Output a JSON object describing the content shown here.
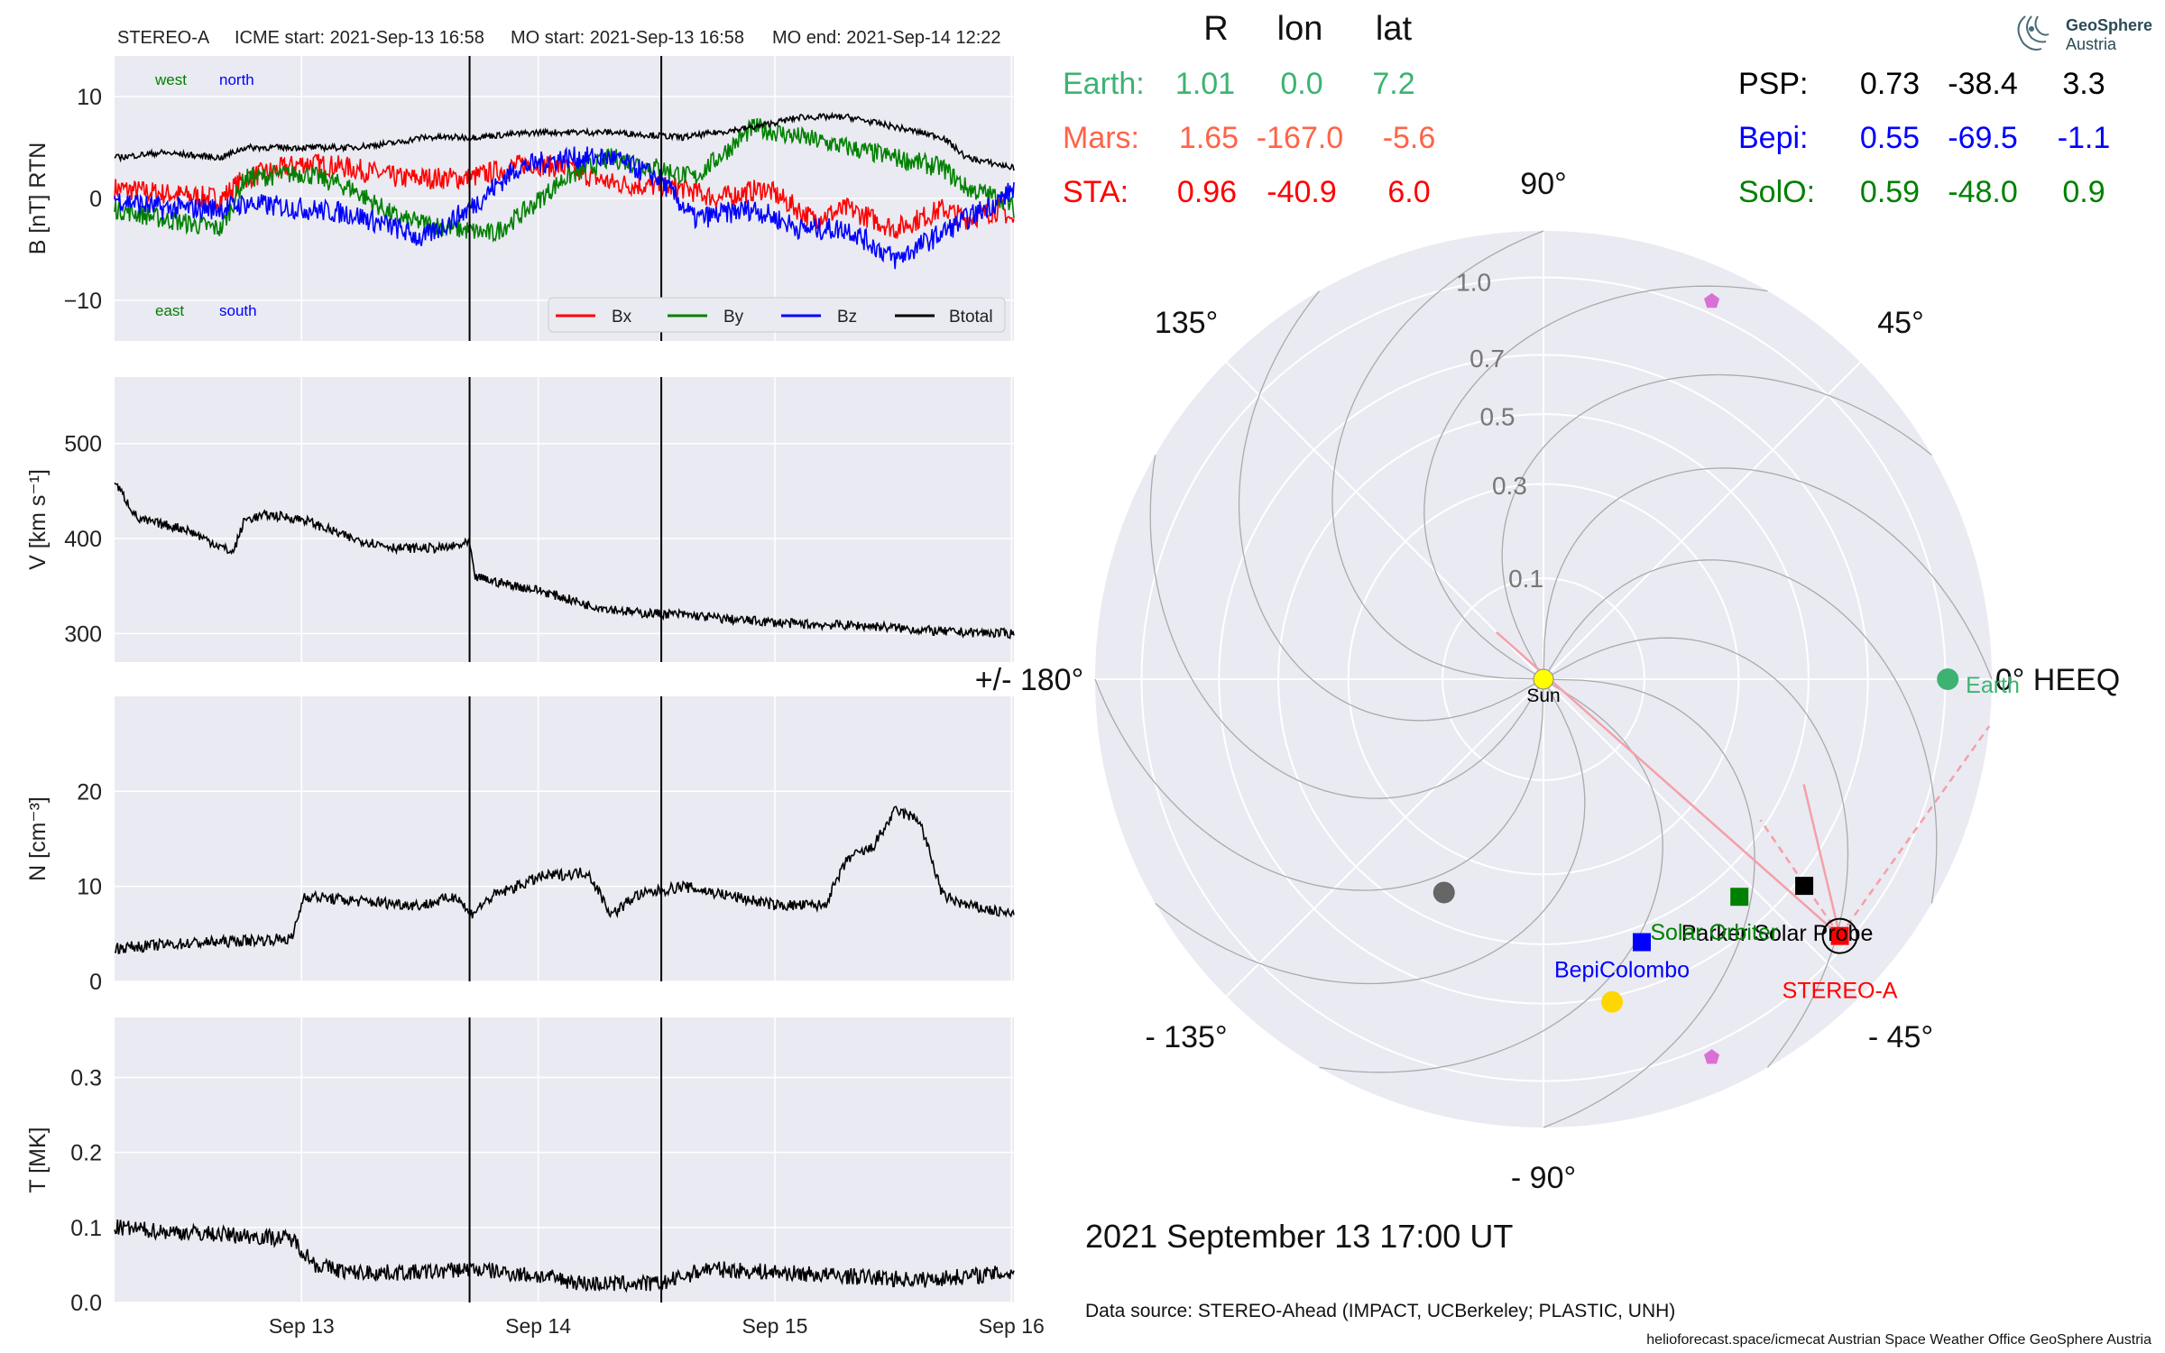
{
  "header": {
    "spacecraft": "STEREO-A",
    "icme_start": "ICME start: 2021-Sep-13 16:58",
    "mo_start": "MO start: 2021-Sep-13 16:58",
    "mo_end": "MO end: 2021-Sep-14 12:22"
  },
  "colors": {
    "panel_bg": "#eaeaf2",
    "bx": "#ff0000",
    "by": "#008000",
    "bz": "#0000ff",
    "btotal": "#000000",
    "earth": "#3cb371",
    "mars": "#ff6347",
    "sta": "#ff0000",
    "psp": "#000000",
    "bepi": "#0000ff",
    "solo": "#008000",
    "sun": "#ffff00",
    "pentagon": "#da70d6",
    "fieldline": "#f4a0a8"
  },
  "chart_data": [
    {
      "type": "line",
      "panel": "magnetic-field",
      "ylabel": "B [nT] RTN",
      "ylim": [
        -14,
        14
      ],
      "yticks": [
        10,
        0,
        -10
      ],
      "ytick_labels": [
        "10",
        "0",
        "−10"
      ],
      "annotations": {
        "west": "west",
        "north": "north",
        "east": "east",
        "south": "south"
      },
      "legend": [
        "Bx",
        "By",
        "Bz",
        "Btotal"
      ],
      "legend_position": "lower-right",
      "x_range_days": [
        0,
        3.8
      ],
      "series": [
        {
          "name": "Bx",
          "x": [
            0,
            0.2,
            0.45,
            0.55,
            0.8,
            1.0,
            1.2,
            1.5,
            1.75,
            1.9,
            2.1,
            2.4,
            2.55,
            2.75,
            2.95,
            3.1,
            3.3,
            3.5,
            3.6,
            3.75,
            3.8
          ],
          "y": [
            1,
            0.5,
            0,
            2,
            3.5,
            3,
            2,
            2,
            3.5,
            3,
            1.5,
            1,
            0,
            1,
            -2,
            -1,
            -3,
            -1,
            -2,
            -1,
            -2.5
          ]
        },
        {
          "name": "By",
          "x": [
            0,
            0.2,
            0.45,
            0.55,
            0.8,
            1.0,
            1.2,
            1.45,
            1.6,
            1.75,
            1.9,
            2.1,
            2.3,
            2.45,
            2.7,
            2.9,
            3.1,
            3.3,
            3.5,
            3.6,
            3.75,
            3.8
          ],
          "y": [
            -1,
            -2,
            -3,
            2,
            2.5,
            1,
            -2,
            -3,
            -3.5,
            -1,
            2,
            4,
            3,
            2,
            7,
            6,
            5,
            4,
            3,
            1,
            0,
            -1
          ]
        },
        {
          "name": "Bz",
          "x": [
            0,
            0.2,
            0.45,
            0.55,
            0.8,
            1.0,
            1.2,
            1.3,
            1.5,
            1.7,
            1.9,
            2.1,
            2.3,
            2.45,
            2.7,
            2.9,
            3.1,
            3.3,
            3.45,
            3.6,
            3.75,
            3.8
          ],
          "y": [
            0,
            -1,
            -1,
            -0.5,
            -1,
            -1.5,
            -3,
            -4,
            -1,
            3,
            4,
            4,
            2,
            -2,
            -1,
            -3,
            -3,
            -6,
            -4,
            -2,
            0,
            1
          ]
        },
        {
          "name": "Btotal",
          "x": [
            0,
            0.2,
            0.45,
            0.55,
            0.8,
            1.0,
            1.2,
            1.3,
            1.5,
            1.8,
            2.1,
            2.4,
            2.7,
            2.9,
            3.1,
            3.3,
            3.5,
            3.6,
            3.8
          ],
          "y": [
            4,
            4.5,
            4,
            5,
            5,
            5,
            5.5,
            6,
            6,
            6.5,
            6.5,
            6,
            7,
            8,
            8,
            7,
            6,
            4,
            3
          ]
        }
      ]
    },
    {
      "type": "line",
      "panel": "velocity",
      "ylabel": "V [km s⁻¹]",
      "ylim": [
        270,
        570
      ],
      "yticks": [
        500,
        400,
        300
      ],
      "ytick_labels": [
        "500",
        "400",
        "300"
      ],
      "series": [
        {
          "name": "V",
          "x": [
            0,
            0.1,
            0.3,
            0.5,
            0.55,
            0.65,
            0.8,
            1.0,
            1.2,
            1.4,
            1.5,
            1.52,
            1.6,
            1.8,
            2.0,
            2.2,
            2.4,
            2.6,
            2.9,
            3.2,
            3.5,
            3.8
          ],
          "y": [
            460,
            420,
            410,
            385,
            420,
            425,
            420,
            400,
            390,
            390,
            395,
            360,
            355,
            345,
            330,
            322,
            320,
            315,
            310,
            308,
            302,
            300
          ]
        }
      ]
    },
    {
      "type": "line",
      "panel": "density",
      "ylabel": "N [cm⁻³]",
      "ylim": [
        0,
        30
      ],
      "yticks": [
        20,
        10,
        0
      ],
      "ytick_labels": [
        "20",
        "10",
        "0"
      ],
      "series": [
        {
          "name": "N",
          "x": [
            0,
            0.3,
            0.75,
            0.8,
            1.0,
            1.3,
            1.45,
            1.5,
            1.6,
            1.8,
            2.0,
            2.1,
            2.2,
            2.4,
            2.6,
            2.8,
            3.0,
            3.1,
            3.2,
            3.3,
            3.4,
            3.5,
            3.6,
            3.8
          ],
          "y": [
            3.5,
            4,
            4.5,
            9,
            8.5,
            8,
            9,
            7,
            9,
            11,
            11.5,
            7,
            9,
            10,
            9,
            8,
            8,
            13,
            14,
            18,
            17,
            9,
            8,
            7
          ]
        }
      ]
    },
    {
      "type": "line",
      "panel": "temperature",
      "ylabel": "T [MK]",
      "ylim": [
        0,
        0.38
      ],
      "yticks": [
        0.3,
        0.2,
        0.1,
        0.0
      ],
      "ytick_labels": [
        "0.3",
        "0.2",
        "0.1",
        "0.0"
      ],
      "xticks": [
        0.79,
        1.79,
        2.79,
        3.79
      ],
      "xtick_labels": [
        "Sep 13",
        "Sep 14",
        "Sep 15",
        "Sep 16"
      ],
      "vlines": [
        1.5,
        2.31
      ],
      "series": [
        {
          "name": "T",
          "x": [
            0,
            0.2,
            0.5,
            0.75,
            0.85,
            1.0,
            1.3,
            1.5,
            1.8,
            2.0,
            2.31,
            2.5,
            2.8,
            3.1,
            3.4,
            3.6,
            3.8
          ],
          "y": [
            0.1,
            0.095,
            0.09,
            0.085,
            0.05,
            0.04,
            0.04,
            0.045,
            0.035,
            0.025,
            0.025,
            0.045,
            0.04,
            0.035,
            0.03,
            0.035,
            0.04
          ]
        }
      ]
    },
    {
      "type": "scatter",
      "panel": "polar-orbit-plot",
      "coordinate_system": "HEEQ",
      "angle_labels": {
        "a0": "0° HEEQ",
        "a45": "45°",
        "a90": "90°",
        "a135": "135°",
        "a180": "+/- 180°",
        "am135": "- 135°",
        "am90": "- 90°",
        "am45": "- 45°"
      },
      "radial_ticks": [
        0.1,
        0.3,
        0.5,
        0.7,
        1.0
      ],
      "radial_tick_labels": [
        "0.1",
        "0.3",
        "0.5",
        "0.7",
        "1.0"
      ],
      "points": [
        {
          "name": "Sun",
          "label": "Sun",
          "r": 0,
          "lon": 0,
          "marker": "circle"
        },
        {
          "name": "Earth",
          "label": "Earth",
          "r": 1.01,
          "lon": 0,
          "marker": "circle"
        },
        {
          "name": "STEREO-A",
          "label": "STEREO-A",
          "r": 0.96,
          "lon": -40.9,
          "marker": "square"
        },
        {
          "name": "Parker Solar Probe",
          "label": "Parker Solar Probe",
          "r": 0.73,
          "lon": -38.4,
          "marker": "square"
        },
        {
          "name": "Solar Orbiter",
          "label": "Solar Orbiter",
          "r": 0.59,
          "lon": -48.0,
          "marker": "square"
        },
        {
          "name": "BepiColombo",
          "label": "BepiColombo",
          "r": 0.55,
          "lon": -69.5,
          "marker": "square"
        },
        {
          "name": "Mercury",
          "label": "",
          "r": 0.41,
          "lon": -115,
          "marker": "circle"
        },
        {
          "name": "Venus",
          "label": "",
          "r": 0.72,
          "lon": -78,
          "marker": "circle"
        },
        {
          "name": "Pentagon-upper",
          "label": "",
          "r": 1.05,
          "lon": 66,
          "marker": "pentagon"
        },
        {
          "name": "Pentagon-lower",
          "label": "",
          "r": 1.05,
          "lon": -66,
          "marker": "pentagon"
        }
      ]
    }
  ],
  "positions_table": {
    "headers": {
      "r": "R",
      "lon": "lon",
      "lat": "lat"
    },
    "left": [
      {
        "name": "Earth:",
        "r": "1.01",
        "lon": "0.0",
        "lat": "7.2"
      },
      {
        "name": "Mars:",
        "r": "1.65",
        "lon": "-167.0",
        "lat": "-5.6"
      },
      {
        "name": "STA:",
        "r": "0.96",
        "lon": "-40.9",
        "lat": "6.0"
      }
    ],
    "right": [
      {
        "name": "PSP:",
        "r": "0.73",
        "lon": "-38.4",
        "lat": "3.3"
      },
      {
        "name": "Bepi:",
        "r": "0.55",
        "lon": "-69.5",
        "lat": "-1.1"
      },
      {
        "name": "SolO:",
        "r": "0.59",
        "lon": "-48.0",
        "lat": "0.9"
      }
    ]
  },
  "timestamp": "2021 September 13  17:00 UT",
  "data_source": "Data source: STEREO-Ahead (IMPACT, UCBerkeley; PLASTIC, UNH)",
  "footer": "helioforecast.space/icmecat   Austrian Space Weather Office   GeoSphere Austria",
  "logo": {
    "line1": "GeoSphere",
    "line2": "Austria"
  }
}
